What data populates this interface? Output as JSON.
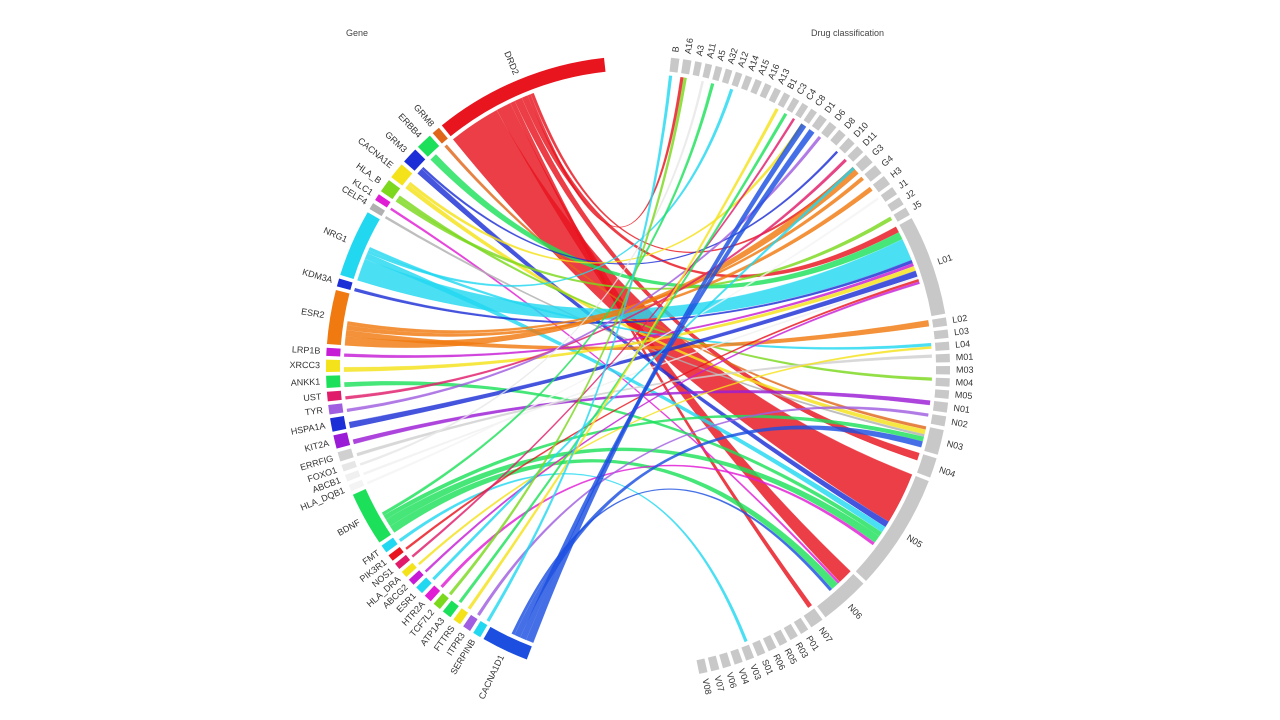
{
  "headers": {
    "gene": "Gene",
    "drug": "Drug classification"
  },
  "chart_data": {
    "type": "chord",
    "groups": {
      "gene": [
        {
          "label": "DRD2",
          "color": "#e8141e",
          "weight": 13
        },
        {
          "label": "GRM8",
          "color": "#e0661a",
          "weight": 0.6
        },
        {
          "label": "ERBB4",
          "color": "#1de05a",
          "weight": 1.2
        },
        {
          "label": "GRM3",
          "color": "#1c2ed6",
          "weight": 1.2
        },
        {
          "label": "CACNA1E",
          "color": "#f4e21a",
          "weight": 1.2
        },
        {
          "label": "HLA_B",
          "color": "#7bd81d",
          "weight": 1.0
        },
        {
          "label": "KLC1",
          "color": "#e01cd4",
          "weight": 0.5
        },
        {
          "label": "CELF4",
          "color": "#b0b0b0",
          "weight": 0.5
        },
        {
          "label": "NRG1",
          "color": "#22d8f0",
          "weight": 5
        },
        {
          "label": "KDM3A",
          "color": "#1c2ed6",
          "weight": 0.6
        },
        {
          "label": "ESR2",
          "color": "#f07a10",
          "weight": 4
        },
        {
          "label": "LRP1B",
          "color": "#c61cd6",
          "weight": 0.6
        },
        {
          "label": "XRCC3",
          "color": "#f4e21a",
          "weight": 0.9
        },
        {
          "label": "ANKK1",
          "color": "#1de05a",
          "weight": 0.9
        },
        {
          "label": "UST",
          "color": "#e01c6a",
          "weight": 0.7
        },
        {
          "label": "TYR",
          "color": "#a05ee0",
          "weight": 0.7
        },
        {
          "label": "HSPA1A",
          "color": "#1c2ed6",
          "weight": 1.0
        },
        {
          "label": "KIT2A",
          "color": "#9b1cd6",
          "weight": 1.0
        },
        {
          "label": "ERRFIG",
          "color": "#d0d0d0",
          "weight": 0.7
        },
        {
          "label": "FOXO1",
          "color": "#e6e6e6",
          "weight": 0.5
        },
        {
          "label": "ABCB1",
          "color": "#f0f0f0",
          "weight": 0.5
        },
        {
          "label": "HLA_DQB1",
          "color": "#f4f4f4",
          "weight": 0.5
        },
        {
          "label": "BDNF",
          "color": "#1de05a",
          "weight": 4
        },
        {
          "label": "FMT",
          "color": "#22d8f0",
          "weight": 0.6
        },
        {
          "label": "PIK3R1",
          "color": "#e8141e",
          "weight": 0.5
        },
        {
          "label": "NOS1",
          "color": "#e01c6a",
          "weight": 0.5
        },
        {
          "label": "HLA_DRA",
          "color": "#f4e21a",
          "weight": 0.5
        },
        {
          "label": "ABCG2",
          "color": "#c61cd6",
          "weight": 0.5
        },
        {
          "label": "ESR1",
          "color": "#22d8f0",
          "weight": 0.6
        },
        {
          "label": "HTR2A",
          "color": "#e01cd4",
          "weight": 0.6
        },
        {
          "label": "TCF7L2",
          "color": "#7bd81d",
          "weight": 0.6
        },
        {
          "label": "ATP1A3",
          "color": "#1de05a",
          "weight": 0.7
        },
        {
          "label": "FTTRS",
          "color": "#f4e21a",
          "weight": 0.6
        },
        {
          "label": "ITPR3",
          "color": "#a05ee0",
          "weight": 0.6
        },
        {
          "label": "SERPINB",
          "color": "#22d8f0",
          "weight": 0.6
        },
        {
          "label": "CACNA1D1",
          "color": "#1c4fe0",
          "weight": 3.5
        }
      ],
      "drug": [
        {
          "label": "B",
          "weight": 0.5
        },
        {
          "label": "A16",
          "weight": 0.5
        },
        {
          "label": "A3",
          "weight": 0.4
        },
        {
          "label": "A11",
          "weight": 0.4
        },
        {
          "label": "A5",
          "weight": 0.4
        },
        {
          "label": "A32",
          "weight": 0.4
        },
        {
          "label": "A12",
          "weight": 0.4
        },
        {
          "label": "A14",
          "weight": 0.4
        },
        {
          "label": "A15",
          "weight": 0.4
        },
        {
          "label": "A16",
          "weight": 0.4
        },
        {
          "label": "A13",
          "weight": 0.4
        },
        {
          "label": "B1",
          "weight": 0.4
        },
        {
          "label": "C3",
          "weight": 0.4
        },
        {
          "label": "C4",
          "weight": 0.4
        },
        {
          "label": "C8",
          "weight": 0.4
        },
        {
          "label": "D1",
          "weight": 0.5
        },
        {
          "label": "D6",
          "weight": 0.5
        },
        {
          "label": "D8",
          "weight": 0.5
        },
        {
          "label": "D10",
          "weight": 0.5
        },
        {
          "label": "D11",
          "weight": 0.5
        },
        {
          "label": "G3",
          "weight": 0.6
        },
        {
          "label": "G4",
          "weight": 0.6
        },
        {
          "label": "H3",
          "weight": 0.6
        },
        {
          "label": "J1",
          "weight": 0.5
        },
        {
          "label": "J2",
          "weight": 0.5
        },
        {
          "label": "J5",
          "weight": 0.5
        },
        {
          "label": "L01",
          "weight": 6
        },
        {
          "label": "L02",
          "weight": 0.5
        },
        {
          "label": "L03",
          "weight": 0.5
        },
        {
          "label": "L04",
          "weight": 0.5
        },
        {
          "label": "M01",
          "weight": 0.5
        },
        {
          "label": "M03",
          "weight": 0.5
        },
        {
          "label": "M04",
          "weight": 0.5
        },
        {
          "label": "M05",
          "weight": 0.5
        },
        {
          "label": "N01",
          "weight": 0.6
        },
        {
          "label": "N02",
          "weight": 0.6
        },
        {
          "label": "N03",
          "weight": 1.5
        },
        {
          "label": "N04",
          "weight": 1.2
        },
        {
          "label": "N05",
          "weight": 7
        },
        {
          "label": "N06",
          "weight": 3
        },
        {
          "label": "N07",
          "weight": 0.8
        },
        {
          "label": "P01",
          "weight": 0.5
        },
        {
          "label": "R03",
          "weight": 0.5
        },
        {
          "label": "R05",
          "weight": 0.5
        },
        {
          "label": "R06",
          "weight": 0.5
        },
        {
          "label": "S01",
          "weight": 0.5
        },
        {
          "label": "V03",
          "weight": 0.5
        },
        {
          "label": "V04",
          "weight": 0.5
        },
        {
          "label": "V06",
          "weight": 0.5
        },
        {
          "label": "V07",
          "weight": 0.5
        },
        {
          "label": "V08",
          "weight": 0.5
        }
      ]
    },
    "links": [
      {
        "gene": "DRD2",
        "drug": "N05",
        "value": 7
      },
      {
        "gene": "DRD2",
        "drug": "N06",
        "value": 2
      },
      {
        "gene": "DRD2",
        "drug": "N07",
        "value": 0.6
      },
      {
        "gene": "DRD2",
        "drug": "N04",
        "value": 1
      },
      {
        "gene": "DRD2",
        "drug": "L01",
        "value": 0.8
      },
      {
        "gene": "DRD2",
        "drug": "A16",
        "value": 0.4
      },
      {
        "gene": "DRD2",
        "drug": "G3",
        "value": 0.4
      },
      {
        "gene": "GRM8",
        "drug": "N03",
        "value": 0.4
      },
      {
        "gene": "ERBB4",
        "drug": "L01",
        "value": 1
      },
      {
        "gene": "GRM3",
        "drug": "N05",
        "value": 0.8
      },
      {
        "gene": "GRM3",
        "drug": "D10",
        "value": 0.3
      },
      {
        "gene": "CACNA1E",
        "drug": "N03",
        "value": 0.6
      },
      {
        "gene": "CACNA1E",
        "drug": "C8",
        "value": 0.4
      },
      {
        "gene": "HLA_B",
        "drug": "J5",
        "value": 0.5
      },
      {
        "gene": "HLA_B",
        "drug": "M04",
        "value": 0.4
      },
      {
        "gene": "KLC1",
        "drug": "N06",
        "value": 0.3
      },
      {
        "gene": "CELF4",
        "drug": "N03",
        "value": 0.3
      },
      {
        "gene": "NRG1",
        "drug": "L01",
        "value": 3
      },
      {
        "gene": "NRG1",
        "drug": "N05",
        "value": 0.8
      },
      {
        "gene": "NRG1",
        "drug": "A12",
        "value": 0.4
      },
      {
        "gene": "NRG1",
        "drug": "L04",
        "value": 0.4
      },
      {
        "gene": "KDM3A",
        "drug": "L01",
        "value": 0.4
      },
      {
        "gene": "ESR2",
        "drug": "G3",
        "value": 1.2
      },
      {
        "gene": "ESR2",
        "drug": "L02",
        "value": 0.8
      },
      {
        "gene": "ESR2",
        "drug": "H3",
        "value": 0.6
      },
      {
        "gene": "ESR2",
        "drug": "G4",
        "value": 0.5
      },
      {
        "gene": "LRP1B",
        "drug": "L01",
        "value": 0.4
      },
      {
        "gene": "XRCC3",
        "drug": "L01",
        "value": 0.6
      },
      {
        "gene": "ANKK1",
        "drug": "N05",
        "value": 0.6
      },
      {
        "gene": "UST",
        "drug": "D11",
        "value": 0.4
      },
      {
        "gene": "TYR",
        "drug": "D6",
        "value": 0.4
      },
      {
        "gene": "HSPA1A",
        "drug": "L01",
        "value": 0.8
      },
      {
        "gene": "KIT2A",
        "drug": "N01",
        "value": 0.6
      },
      {
        "gene": "ERRFIG",
        "drug": "M01",
        "value": 0.4
      },
      {
        "gene": "FOXO1",
        "drug": "A11",
        "value": 0.3
      },
      {
        "gene": "ABCB1",
        "drug": "L01",
        "value": 0.3
      },
      {
        "gene": "HLA_DQB1",
        "drug": "J1",
        "value": 0.3
      },
      {
        "gene": "BDNF",
        "drug": "N06",
        "value": 1
      },
      {
        "gene": "BDNF",
        "drug": "N05",
        "value": 1
      },
      {
        "gene": "BDNF",
        "drug": "N03",
        "value": 0.6
      },
      {
        "gene": "BDNF",
        "drug": "A5",
        "value": 0.4
      },
      {
        "gene": "FMT",
        "drug": "V03",
        "value": 0.4
      },
      {
        "gene": "PIK3R1",
        "drug": "L01",
        "value": 0.3
      },
      {
        "gene": "NOS1",
        "drug": "C4",
        "value": 0.3
      },
      {
        "gene": "HLA_DRA",
        "drug": "L04",
        "value": 0.3
      },
      {
        "gene": "ABCG2",
        "drug": "L01",
        "value": 0.3
      },
      {
        "gene": "ESR1",
        "drug": "G3",
        "value": 0.4
      },
      {
        "gene": "HTR2A",
        "drug": "N05",
        "value": 0.4
      },
      {
        "gene": "TCF7L2",
        "drug": "A16",
        "value": 0.4
      },
      {
        "gene": "ATP1A3",
        "drug": "C3",
        "value": 0.4
      },
      {
        "gene": "FTTRS",
        "drug": "B1",
        "value": 0.4
      },
      {
        "gene": "ITPR3",
        "drug": "N02",
        "value": 0.4
      },
      {
        "gene": "SERPINB",
        "drug": "B",
        "value": 0.4
      },
      {
        "gene": "CACNA1D1",
        "drug": "C8",
        "value": 1
      },
      {
        "gene": "CACNA1D1",
        "drug": "D1",
        "value": 0.8
      },
      {
        "gene": "CACNA1D1",
        "drug": "N03",
        "value": 0.8
      },
      {
        "gene": "CACNA1D1",
        "drug": "N06",
        "value": 0.4
      }
    ]
  }
}
